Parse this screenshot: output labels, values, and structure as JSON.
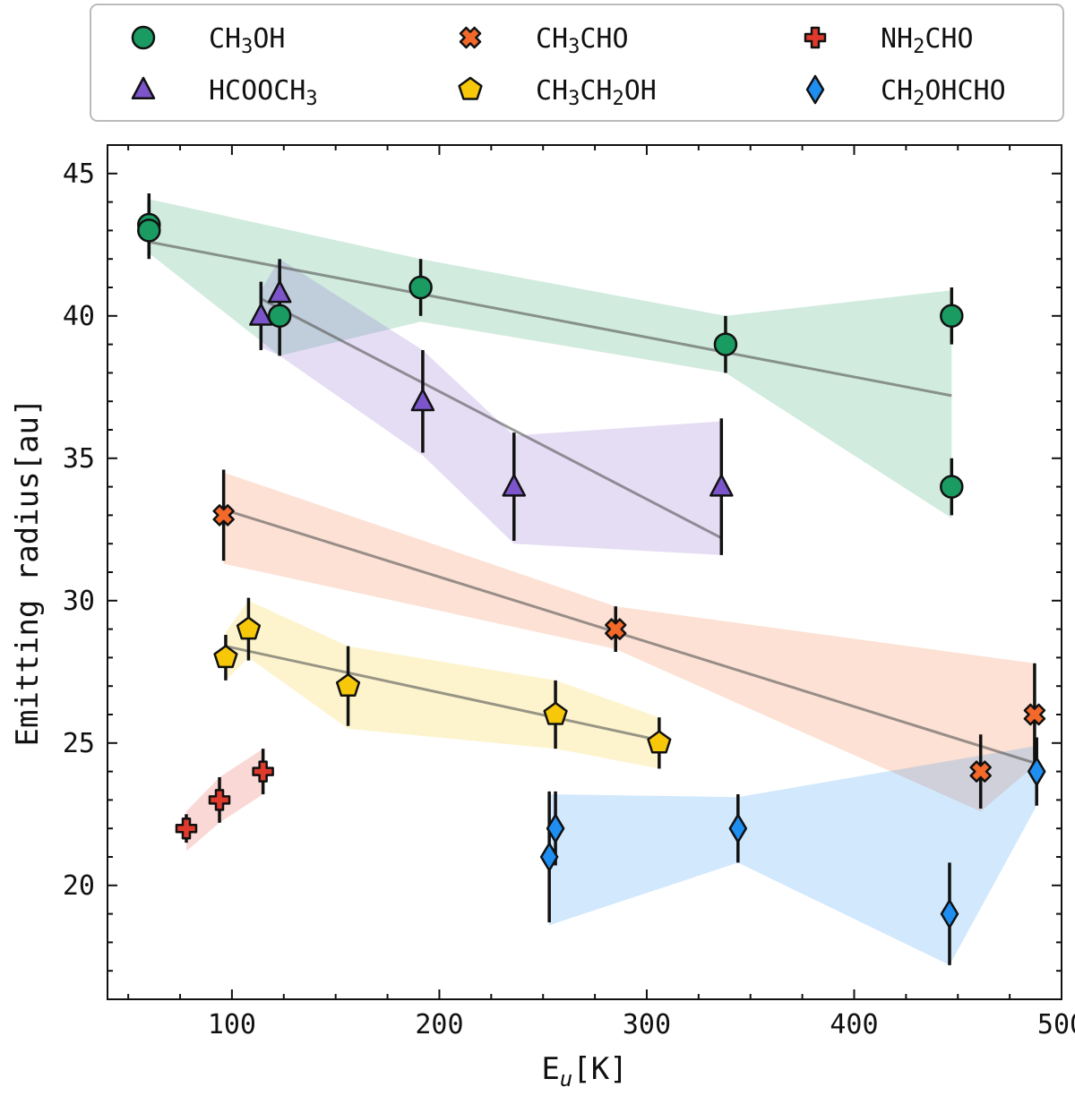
{
  "chart_data": {
    "type": "scatter",
    "xlabel": "E_u[K]",
    "ylabel": "Emitting radius[au]",
    "xlim": [
      40,
      500
    ],
    "ylim": [
      16,
      46
    ],
    "xticks": [
      100,
      200,
      300,
      400,
      500
    ],
    "yticks": [
      20,
      25,
      30,
      35,
      40,
      45
    ],
    "grid": false,
    "legend_position": "top",
    "series": [
      {
        "name": "CH3OH",
        "label": {
          "base": "CH",
          "sub": "3",
          "rest": "OH"
        },
        "marker": "circle",
        "color": "#1a9b61",
        "band_color": "#1a9b61",
        "points": [
          {
            "x": 60,
            "y": 43.2,
            "err": 1.1
          },
          {
            "x": 60,
            "y": 43.0,
            "err": 1.0
          },
          {
            "x": 123,
            "y": 40.0,
            "err": 1.4
          },
          {
            "x": 191,
            "y": 41.0,
            "err": 1.0
          },
          {
            "x": 338,
            "y": 39.0,
            "err": 1.0
          },
          {
            "x": 447,
            "y": 40.0,
            "err": 1.0
          },
          {
            "x": 447,
            "y": 34.0,
            "err": 1.0
          }
        ],
        "fit": {
          "x": [
            60,
            447
          ],
          "y": [
            42.6,
            37.2
          ]
        },
        "band_upper": [
          [
            60,
            44.1
          ],
          [
            191,
            42.0
          ],
          [
            338,
            40.0
          ],
          [
            447,
            40.9
          ]
        ],
        "band_lower": [
          [
            447,
            32.9
          ],
          [
            338,
            38.0
          ],
          [
            191,
            39.8
          ],
          [
            123,
            38.6
          ],
          [
            60,
            42.2
          ]
        ]
      },
      {
        "name": "HCOOCH3",
        "label": {
          "base": "HCOOCH",
          "sub": "3",
          "rest": ""
        },
        "marker": "triangle",
        "color": "#7b55c9",
        "band_color": "#7b55c9",
        "points": [
          {
            "x": 114,
            "y": 40.0,
            "err": 1.2
          },
          {
            "x": 123,
            "y": 40.8,
            "err": 1.2
          },
          {
            "x": 192,
            "y": 37.0,
            "err": 1.8
          },
          {
            "x": 236,
            "y": 34.0,
            "err": 1.9
          },
          {
            "x": 336,
            "y": 34.0,
            "err": 2.4
          }
        ],
        "fit": {
          "x": [
            114,
            336
          ],
          "y": [
            40.6,
            32.2
          ]
        },
        "band_upper": [
          [
            114,
            40.9
          ],
          [
            123,
            42.0
          ],
          [
            192,
            38.8
          ],
          [
            236,
            35.8
          ],
          [
            336,
            36.3
          ]
        ],
        "band_lower": [
          [
            336,
            31.6
          ],
          [
            236,
            32.0
          ],
          [
            192,
            35.1
          ],
          [
            123,
            38.6
          ],
          [
            114,
            38.9
          ]
        ]
      },
      {
        "name": "CH3CHO",
        "label": {
          "base": "CH",
          "sub": "3",
          "rest": "CHO"
        },
        "marker": "x",
        "color": "#f2692a",
        "band_color": "#f2692a",
        "points": [
          {
            "x": 96,
            "y": 33.0,
            "err": 1.6
          },
          {
            "x": 285,
            "y": 29.0,
            "err": 0.8
          },
          {
            "x": 461,
            "y": 24.0,
            "err": 1.3
          },
          {
            "x": 487,
            "y": 26.0,
            "err": 1.8
          }
        ],
        "fit": {
          "x": [
            96,
            487
          ],
          "y": [
            33.2,
            24.3
          ]
        },
        "band_upper": [
          [
            96,
            34.5
          ],
          [
            285,
            29.8
          ],
          [
            487,
            27.8
          ]
        ],
        "band_lower": [
          [
            487,
            24.2
          ],
          [
            461,
            22.6
          ],
          [
            285,
            28.3
          ],
          [
            96,
            31.3
          ]
        ]
      },
      {
        "name": "CH3CH2OH",
        "label": {
          "base": "CH",
          "sub": "3",
          "rest": "CH",
          "sub2": "2",
          "rest2": "OH"
        },
        "marker": "pentagon",
        "color": "#f7c80a",
        "band_color": "#f7c80a",
        "points": [
          {
            "x": 97,
            "y": 28.0,
            "err": 0.8
          },
          {
            "x": 108,
            "y": 29.0,
            "err": 1.1
          },
          {
            "x": 156,
            "y": 27.0,
            "err": 1.4
          },
          {
            "x": 256,
            "y": 26.0,
            "err": 1.2
          },
          {
            "x": 306,
            "y": 25.0,
            "err": 0.9
          }
        ],
        "fit": {
          "x": [
            97,
            306
          ],
          "y": [
            28.4,
            25.1
          ]
        },
        "band_upper": [
          [
            97,
            28.9
          ],
          [
            108,
            30.0
          ],
          [
            156,
            28.4
          ],
          [
            256,
            27.2
          ],
          [
            306,
            25.9
          ]
        ],
        "band_lower": [
          [
            306,
            24.1
          ],
          [
            256,
            24.8
          ],
          [
            156,
            25.5
          ],
          [
            108,
            28.0
          ],
          [
            97,
            27.2
          ]
        ]
      },
      {
        "name": "NH2CHO",
        "label": {
          "base": "NH",
          "sub": "2",
          "rest": "CHO"
        },
        "marker": "plus",
        "color": "#e03a2c",
        "band_color": "#e03a2c",
        "points": [
          {
            "x": 78,
            "y": 22.0,
            "err": 0.5
          },
          {
            "x": 94,
            "y": 23.0,
            "err": 0.8
          },
          {
            "x": 115,
            "y": 24.0,
            "err": 0.8
          }
        ],
        "fit": null,
        "band_upper": [
          [
            78,
            22.6
          ],
          [
            94,
            23.8
          ],
          [
            115,
            24.8
          ]
        ],
        "band_lower": [
          [
            115,
            23.2
          ],
          [
            94,
            22.2
          ],
          [
            78,
            21.2
          ]
        ]
      },
      {
        "name": "CH2OHCHO",
        "label": {
          "base": "CH",
          "sub": "2",
          "rest": "OHCHO"
        },
        "marker": "diamond",
        "color": "#1f8ef1",
        "band_color": "#1f8ef1",
        "points": [
          {
            "x": 253,
            "y": 21.0,
            "err": 2.3
          },
          {
            "x": 256,
            "y": 22.0,
            "err": 1.3
          },
          {
            "x": 344,
            "y": 22.0,
            "err": 1.2
          },
          {
            "x": 446,
            "y": 19.0,
            "err": 1.8
          },
          {
            "x": 488,
            "y": 24.0,
            "err": 1.2
          }
        ],
        "fit": null,
        "band_upper": [
          [
            253,
            23.2
          ],
          [
            344,
            23.1
          ],
          [
            488,
            24.9
          ]
        ],
        "band_lower": [
          [
            488,
            22.8
          ],
          [
            446,
            17.2
          ],
          [
            344,
            20.8
          ],
          [
            253,
            18.6
          ]
        ]
      }
    ]
  }
}
